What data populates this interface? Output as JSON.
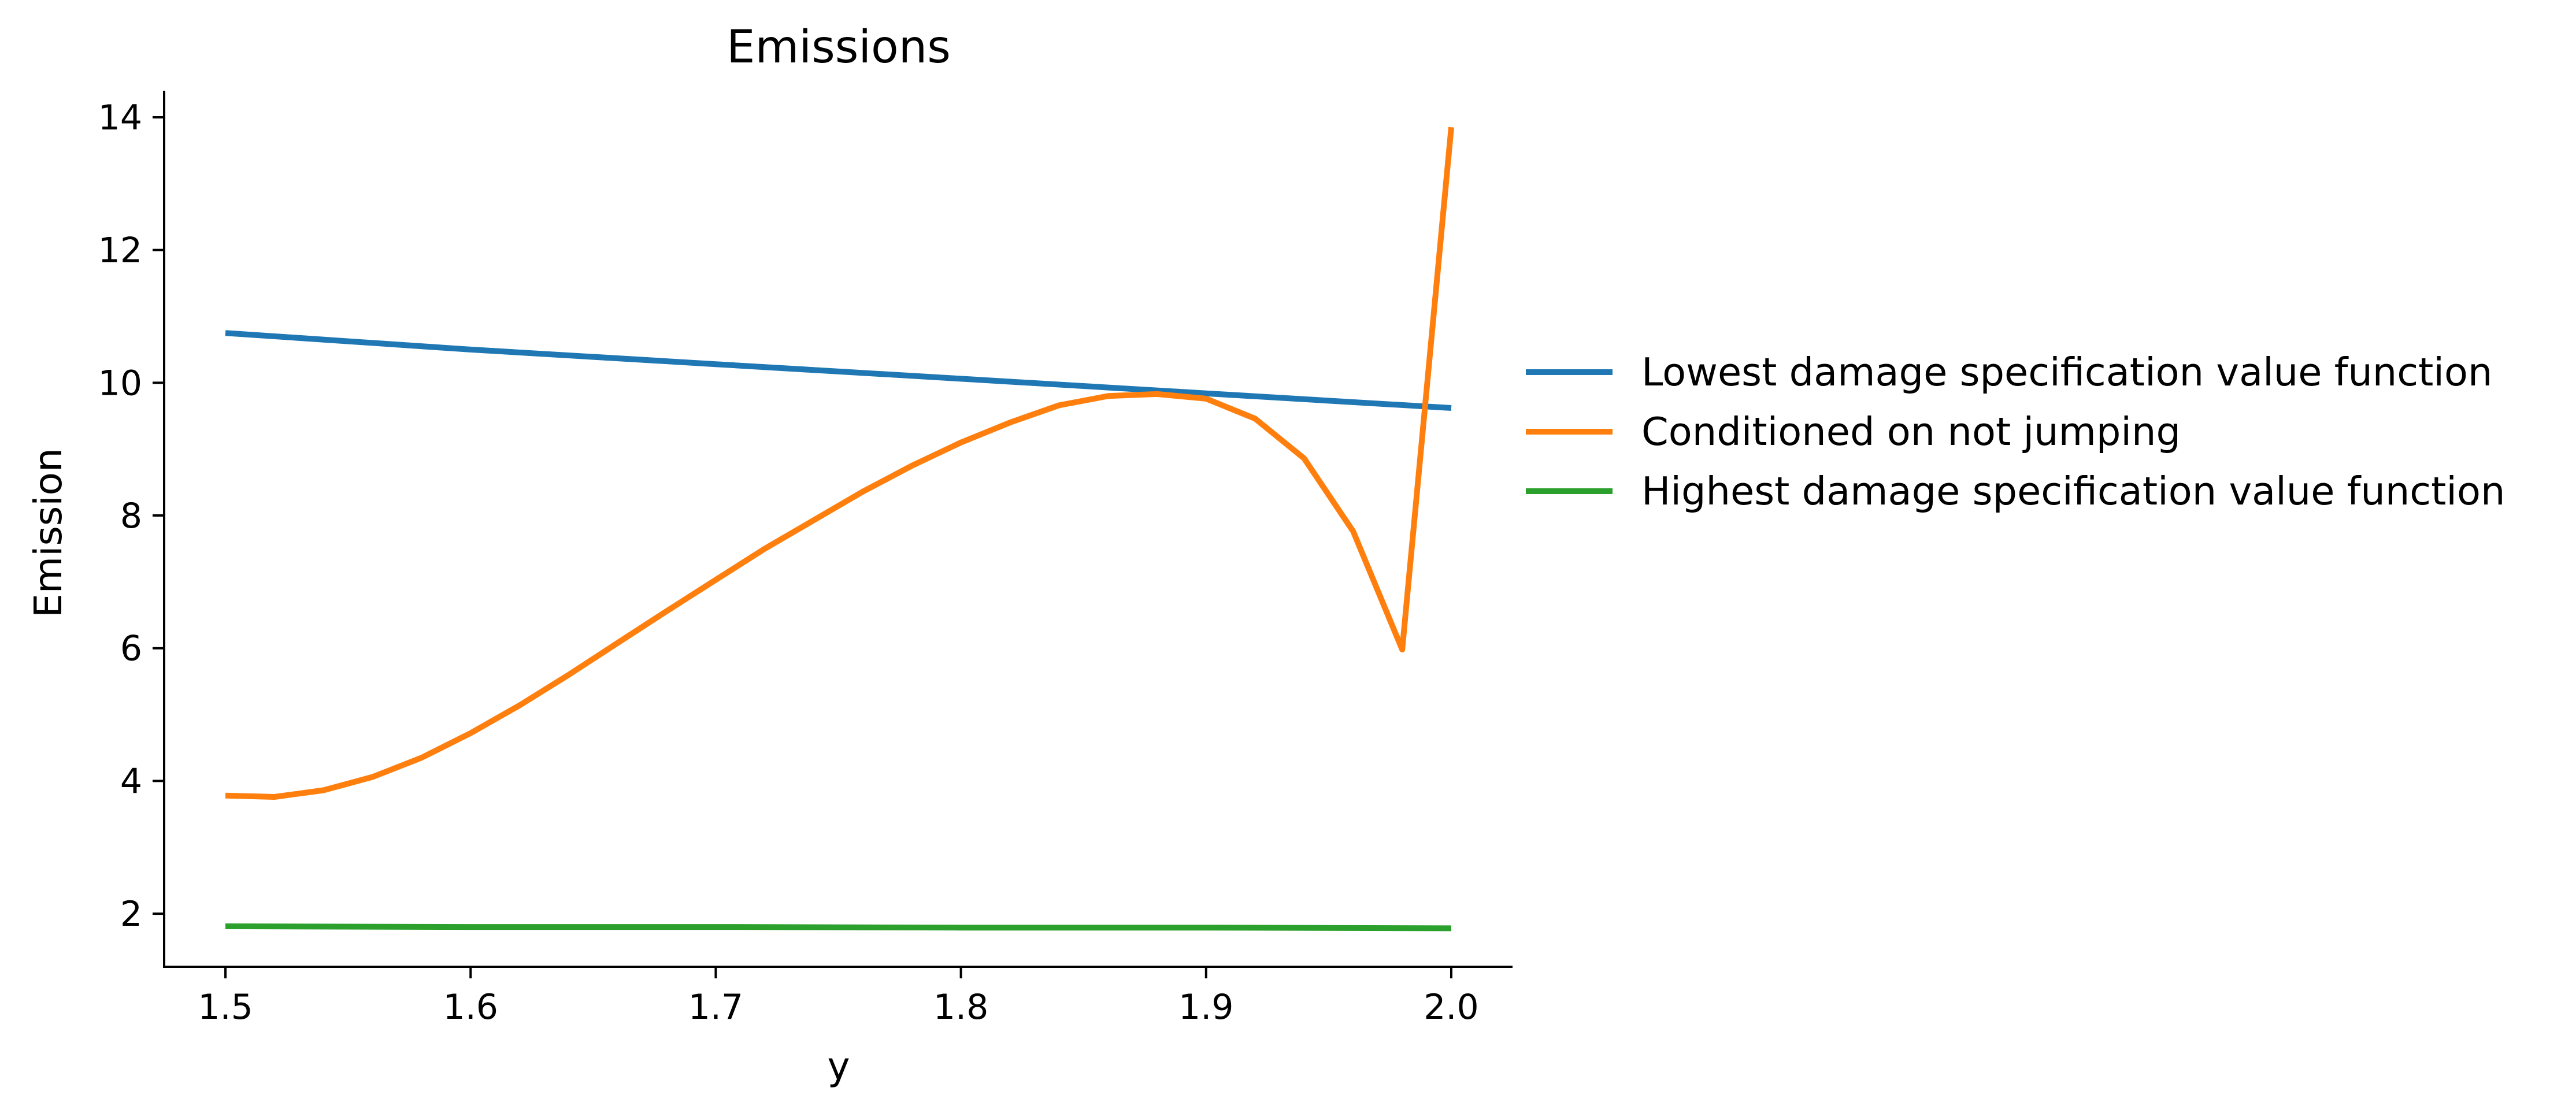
{
  "chart_data": {
    "type": "line",
    "title": "Emissions",
    "xlabel": "y",
    "ylabel": "Emission",
    "xlim": [
      1.475,
      2.025
    ],
    "ylim": [
      1.2,
      14.4
    ],
    "xticks": [
      1.5,
      1.6,
      1.7,
      1.8,
      1.9,
      2.0
    ],
    "xtick_labels": [
      "1.5",
      "1.6",
      "1.7",
      "1.8",
      "1.9",
      "2.0"
    ],
    "yticks": [
      2,
      4,
      6,
      8,
      10,
      12,
      14
    ],
    "ytick_labels": [
      "2",
      "4",
      "6",
      "8",
      "10",
      "12",
      "14"
    ],
    "grid": false,
    "legend_position": "right",
    "series": [
      {
        "name": "Lowest damage specification value function",
        "color": "#1f77b4",
        "x": [
          1.5,
          1.6,
          1.7,
          1.8,
          1.9,
          2.0
        ],
        "y": [
          10.75,
          10.5,
          10.28,
          10.06,
          9.84,
          9.62
        ]
      },
      {
        "name": "Conditioned on not jumping",
        "color": "#ff7f0e",
        "x": [
          1.5,
          1.52,
          1.54,
          1.56,
          1.58,
          1.6,
          1.62,
          1.64,
          1.66,
          1.68,
          1.7,
          1.72,
          1.74,
          1.76,
          1.78,
          1.8,
          1.82,
          1.84,
          1.86,
          1.88,
          1.9,
          1.92,
          1.94,
          1.96,
          1.98,
          2.0
        ],
        "y": [
          3.78,
          3.76,
          3.86,
          4.06,
          4.35,
          4.72,
          5.14,
          5.6,
          6.08,
          6.56,
          7.03,
          7.5,
          7.93,
          8.36,
          8.75,
          9.1,
          9.4,
          9.66,
          9.8,
          9.83,
          9.76,
          9.46,
          8.86,
          7.76,
          5.98,
          13.85
        ]
      },
      {
        "name": "Highest damage specification value function",
        "color": "#2ca02c",
        "x": [
          1.5,
          1.6,
          1.7,
          1.8,
          1.9,
          2.0
        ],
        "y": [
          1.81,
          1.8,
          1.8,
          1.79,
          1.79,
          1.78
        ]
      }
    ]
  }
}
